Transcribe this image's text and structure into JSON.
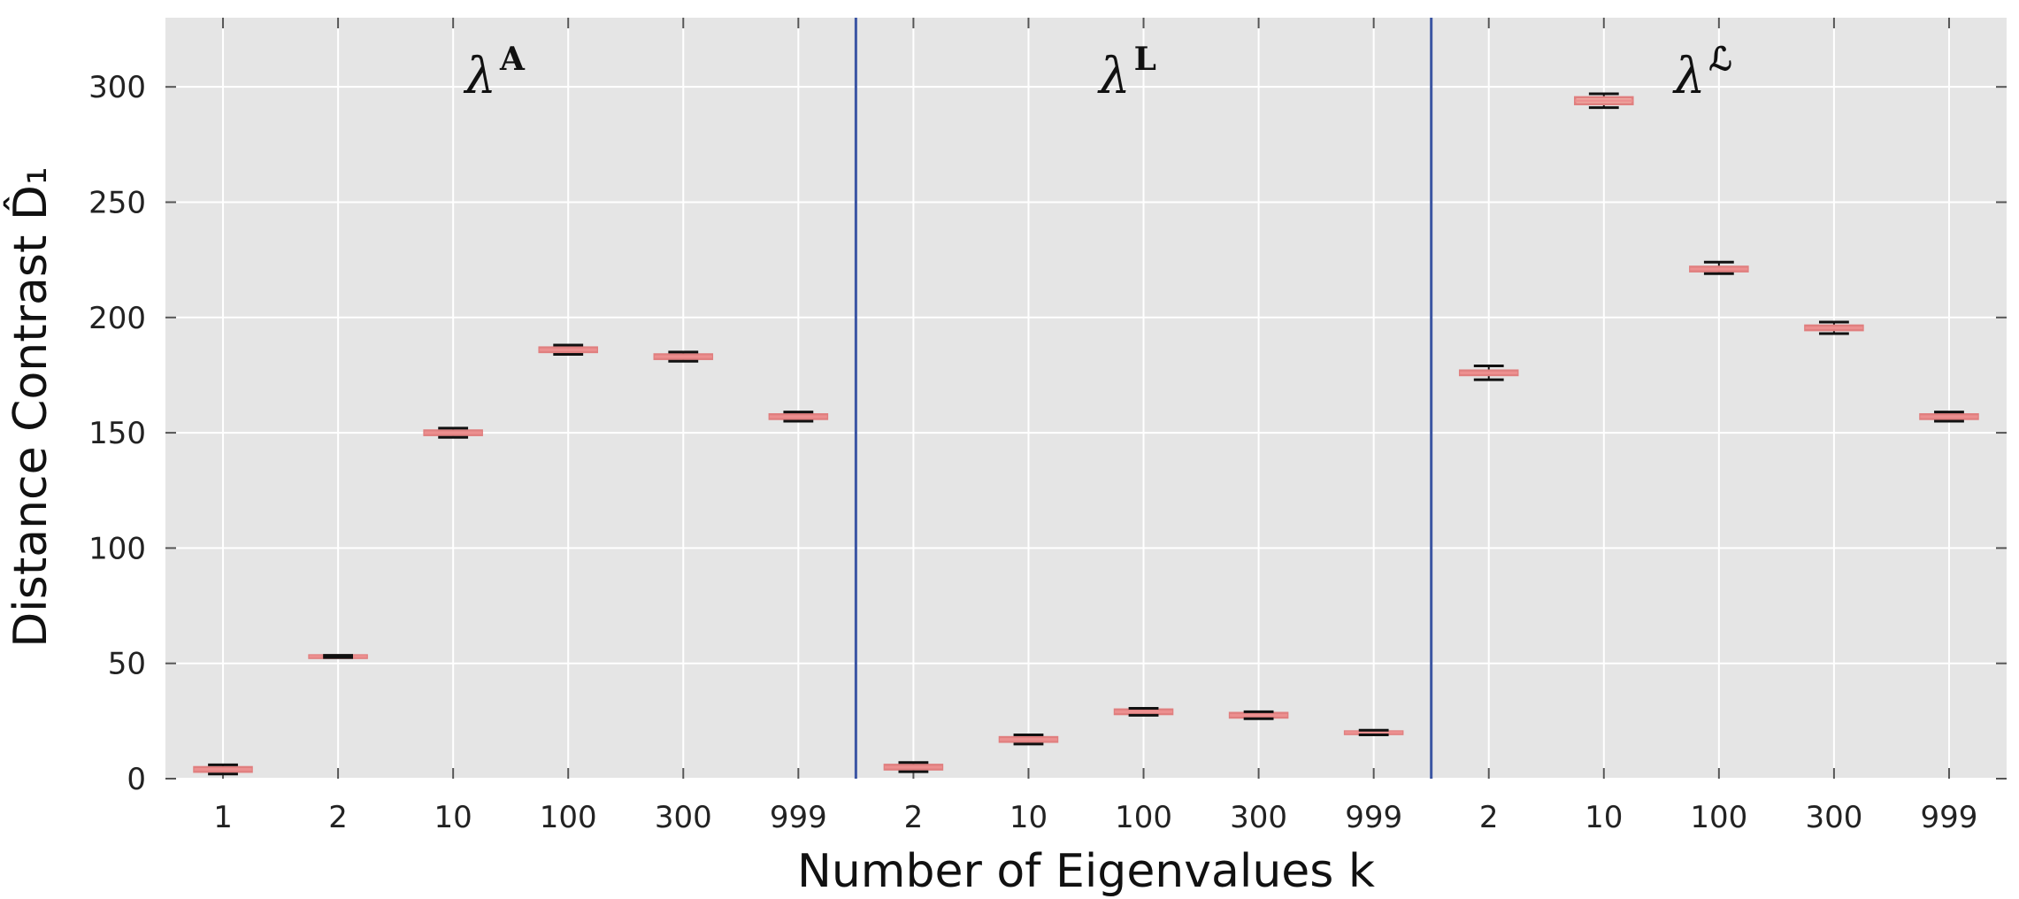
{
  "chart_data": {
    "type": "box",
    "xlabel": "Number of Eigenvalues k",
    "ylabel": "Distance Contrast D̂₁",
    "ylim": [
      0,
      330
    ],
    "yticks": [
      0,
      50,
      100,
      150,
      200,
      250,
      300
    ],
    "grid": true,
    "colors": {
      "background": "#e5e5e5",
      "grid": "#ffffff",
      "box": "#e07f7f",
      "median": "#ec8f8f",
      "whisker": "#111111",
      "separator": "#3b55a3"
    },
    "groups": [
      {
        "label_base": "λ",
        "label_sup": "A",
        "categories": [
          "1",
          "2",
          "10",
          "100",
          "300",
          "999"
        ],
        "boxes": [
          {
            "median": 4,
            "q1": 3,
            "q3": 5,
            "whisker_low": 2,
            "whisker_high": 6
          },
          {
            "median": 53,
            "q1": 52.5,
            "q3": 53.5,
            "whisker_low": 52.5,
            "whisker_high": 53.5
          },
          {
            "median": 150,
            "q1": 149,
            "q3": 151,
            "whisker_low": 148,
            "whisker_high": 152
          },
          {
            "median": 186,
            "q1": 185,
            "q3": 187,
            "whisker_low": 184,
            "whisker_high": 188
          },
          {
            "median": 183,
            "q1": 182,
            "q3": 184,
            "whisker_low": 181,
            "whisker_high": 185
          },
          {
            "median": 157,
            "q1": 156,
            "q3": 158,
            "whisker_low": 155,
            "whisker_high": 159
          }
        ]
      },
      {
        "label_base": "λ",
        "label_sup": "L",
        "categories": [
          "2",
          "10",
          "100",
          "300",
          "999"
        ],
        "boxes": [
          {
            "median": 5,
            "q1": 4,
            "q3": 6,
            "whisker_low": 3,
            "whisker_high": 7
          },
          {
            "median": 17,
            "q1": 16,
            "q3": 18,
            "whisker_low": 15,
            "whisker_high": 19
          },
          {
            "median": 29,
            "q1": 28,
            "q3": 30,
            "whisker_low": 27.5,
            "whisker_high": 30.5
          },
          {
            "median": 27.5,
            "q1": 26.5,
            "q3": 28.5,
            "whisker_low": 26,
            "whisker_high": 29
          },
          {
            "median": 20,
            "q1": 19.5,
            "q3": 20.5,
            "whisker_low": 19,
            "whisker_high": 21
          }
        ]
      },
      {
        "label_base": "λ",
        "label_sup": "ℒ",
        "categories": [
          "2",
          "10",
          "100",
          "300",
          "999"
        ],
        "boxes": [
          {
            "median": 176,
            "q1": 175,
            "q3": 177,
            "whisker_low": 173,
            "whisker_high": 179
          },
          {
            "median": 294,
            "q1": 292.5,
            "q3": 295.5,
            "whisker_low": 291,
            "whisker_high": 297
          },
          {
            "median": 221,
            "q1": 220,
            "q3": 222,
            "whisker_low": 219,
            "whisker_high": 224
          },
          {
            "median": 195.5,
            "q1": 194.5,
            "q3": 196.5,
            "whisker_low": 193,
            "whisker_high": 198
          },
          {
            "median": 157,
            "q1": 156,
            "q3": 158,
            "whisker_low": 155,
            "whisker_high": 159
          }
        ]
      }
    ]
  }
}
